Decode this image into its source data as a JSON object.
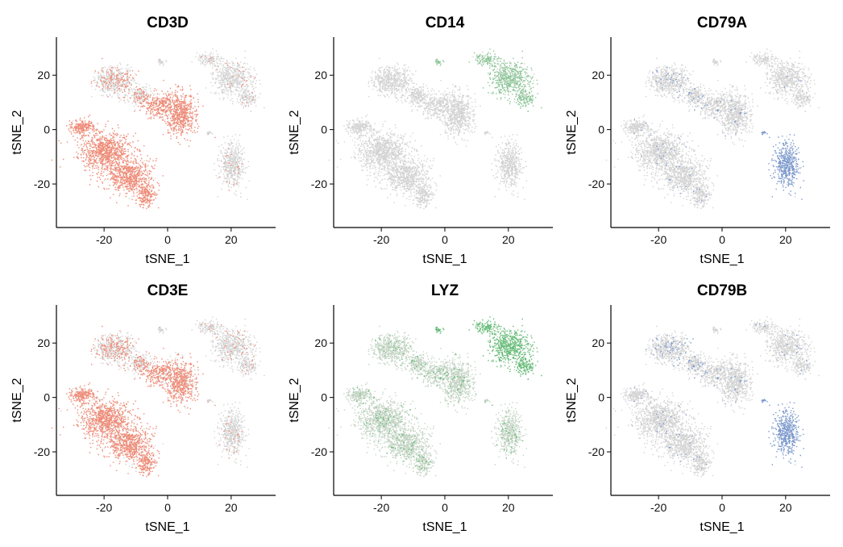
{
  "chart_data": [
    {
      "type": "scatter",
      "title": "CD3D",
      "xlabel": "tSNE_1",
      "ylabel": "tSNE_2",
      "xticks": [
        "-20",
        "0",
        "20"
      ],
      "yticks": [
        "20",
        "0",
        "-20"
      ],
      "xlim": [
        -35,
        34
      ],
      "ylim": [
        -36,
        34
      ],
      "low_color": "#d3d3d3",
      "high_color": "#ee8b77",
      "expressing_clusters": [
        "T-cell regions (left and central islands)"
      ],
      "grid": false
    },
    {
      "type": "scatter",
      "title": "CD14",
      "xlabel": "tSNE_1",
      "ylabel": "tSNE_2",
      "xticks": [
        "-20",
        "0",
        "20"
      ],
      "yticks": [
        "20",
        "0",
        "-20"
      ],
      "xlim": [
        -35,
        34
      ],
      "ylim": [
        -36,
        34
      ],
      "low_color": "#d3d3d3",
      "high_color": "#8dc597",
      "expressing_clusters": [
        "upper-right island"
      ],
      "grid": false
    },
    {
      "type": "scatter",
      "title": "CD79A",
      "xlabel": "tSNE_1",
      "ylabel": "tSNE_2",
      "xticks": [
        "-20",
        "0",
        "20"
      ],
      "yticks": [
        "20",
        "0",
        "-20"
      ],
      "xlim": [
        -35,
        34
      ],
      "ylim": [
        -36,
        34
      ],
      "low_color": "#d3d3d3",
      "high_color": "#7a98cc",
      "expressing_clusters": [
        "lower-right island"
      ],
      "grid": false
    },
    {
      "type": "scatter",
      "title": "CD3E",
      "xlabel": "tSNE_1",
      "ylabel": "tSNE_2",
      "xticks": [
        "-20",
        "0",
        "20"
      ],
      "yticks": [
        "20",
        "0",
        "-20"
      ],
      "xlim": [
        -35,
        34
      ],
      "ylim": [
        -36,
        34
      ],
      "low_color": "#d3d3d3",
      "high_color": "#ee8b77",
      "expressing_clusters": [
        "T-cell regions (left and central islands)"
      ],
      "grid": false
    },
    {
      "type": "scatter",
      "title": "LYZ",
      "xlabel": "tSNE_1",
      "ylabel": "tSNE_2",
      "xticks": [
        "-20",
        "0",
        "20"
      ],
      "yticks": [
        "20",
        "0",
        "-20"
      ],
      "xlim": [
        -35,
        34
      ],
      "ylim": [
        -36,
        34
      ],
      "low_color": "#c3d3c3",
      "high_color": "#66bb77",
      "expressing_clusters": [
        "upper-right island (strong)",
        "scattered low expression elsewhere"
      ],
      "grid": false
    },
    {
      "type": "scatter",
      "title": "CD79B",
      "xlabel": "tSNE_1",
      "ylabel": "tSNE_2",
      "xticks": [
        "-20",
        "0",
        "20"
      ],
      "yticks": [
        "20",
        "0",
        "-20"
      ],
      "xlim": [
        -35,
        34
      ],
      "ylim": [
        -36,
        34
      ],
      "low_color": "#d3d3d3",
      "high_color": "#7a98cc",
      "expressing_clusters": [
        "lower-right island"
      ],
      "grid": false
    }
  ]
}
